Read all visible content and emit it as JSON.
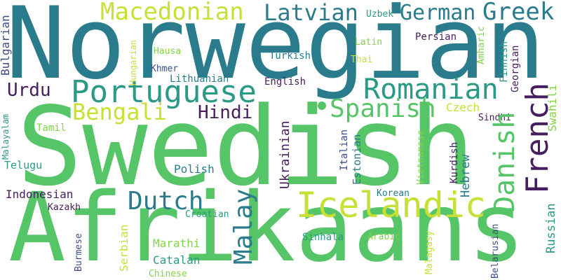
{
  "words": [
    {
      "text": "Norwegian",
      "color": "#2a7b8c"
    },
    {
      "text": "Swedish",
      "color": "#55c567"
    },
    {
      "text": "Afrikaans",
      "color": "#55c567"
    },
    {
      "text": "Portuguese",
      "color": "#2a9a86"
    },
    {
      "text": "Romanian",
      "color": "#2a9a86"
    },
    {
      "text": "Icelandic",
      "color": "#c8df35"
    },
    {
      "text": "Macedonian",
      "color": "#c8df35"
    },
    {
      "text": "Latvian",
      "color": "#2a7b8c"
    },
    {
      "text": "German",
      "color": "#2a7b8c"
    },
    {
      "text": "Greek",
      "color": "#2a7b8c"
    },
    {
      "text": "Spanish",
      "color": "#55c567"
    },
    {
      "text": "Danish",
      "color": "#55c567"
    },
    {
      "text": "French",
      "color": "#461d5e"
    },
    {
      "text": "Dutch",
      "color": "#2a7b8c"
    },
    {
      "text": "Malay",
      "color": "#2a7b8c"
    },
    {
      "text": "Bengali",
      "color": "#c8df35"
    },
    {
      "text": "Hindi",
      "color": "#461d5e"
    },
    {
      "text": "Urdu",
      "color": "#461d5e"
    },
    {
      "text": "Bulgarian",
      "color": "#3c4e8a"
    },
    {
      "text": "Uzbek",
      "color": "#2a9a86"
    },
    {
      "text": "Persian",
      "color": "#461d5e"
    },
    {
      "text": "Latin",
      "color": "#84d24a"
    },
    {
      "text": "Hausa",
      "color": "#84d24a"
    },
    {
      "text": "Hungarian",
      "color": "#c8df35"
    },
    {
      "text": "Turkish",
      "color": "#2a7b8c"
    },
    {
      "text": "Thai",
      "color": "#c8df35"
    },
    {
      "text": "Amharic",
      "color": "#84d24a"
    },
    {
      "text": "Finnish",
      "color": "#2a9a86"
    },
    {
      "text": "Georgian",
      "color": "#461d5e"
    },
    {
      "text": "Khmer",
      "color": "#3c4e8a"
    },
    {
      "text": "Lithuanian",
      "color": "#2a7b8c"
    },
    {
      "text": "English",
      "color": "#461d5e"
    },
    {
      "text": "Czech",
      "color": "#c8df35"
    },
    {
      "text": "Sindhi",
      "color": "#461d5e"
    },
    {
      "text": "Swahili",
      "color": "#84d24a"
    },
    {
      "text": "Tamil",
      "color": "#84d24a"
    },
    {
      "text": "Malayalam",
      "color": "#2a9a86"
    },
    {
      "text": "Telugu",
      "color": "#2a9a86"
    },
    {
      "text": "Polish",
      "color": "#2a7b8c"
    },
    {
      "text": "Ukrainian",
      "color": "#461d5e"
    },
    {
      "text": "Italian",
      "color": "#3c4e8a"
    },
    {
      "text": "Estonian",
      "color": "#2a7b8c"
    },
    {
      "text": "Vietnamese",
      "color": "#84d24a"
    },
    {
      "text": "Kurdish",
      "color": "#461d5e"
    },
    {
      "text": "Hebrew",
      "color": "#2a7b8c"
    },
    {
      "text": "Indonesian",
      "color": "#461d5e"
    },
    {
      "text": "Kazakh",
      "color": "#461d5e"
    },
    {
      "text": "Korean",
      "color": "#2a7b8c"
    },
    {
      "text": "Croatian",
      "color": "#2a9a86"
    },
    {
      "text": "Serbian",
      "color": "#c8df35"
    },
    {
      "text": "Marathi",
      "color": "#84d24a"
    },
    {
      "text": "Catalan",
      "color": "#2a9a86"
    },
    {
      "text": "Burmese",
      "color": "#3c4e8a"
    },
    {
      "text": "Chinese",
      "color": "#84d24a"
    },
    {
      "text": "Sinhala",
      "color": "#2a9a86"
    },
    {
      "text": "Arabic",
      "color": "#84d24a"
    },
    {
      "text": "Malagasy",
      "color": "#c8df35"
    },
    {
      "text": "Belarusian",
      "color": "#3c4e8a"
    },
    {
      "text": "Russian",
      "color": "#2a9a86"
    }
  ]
}
